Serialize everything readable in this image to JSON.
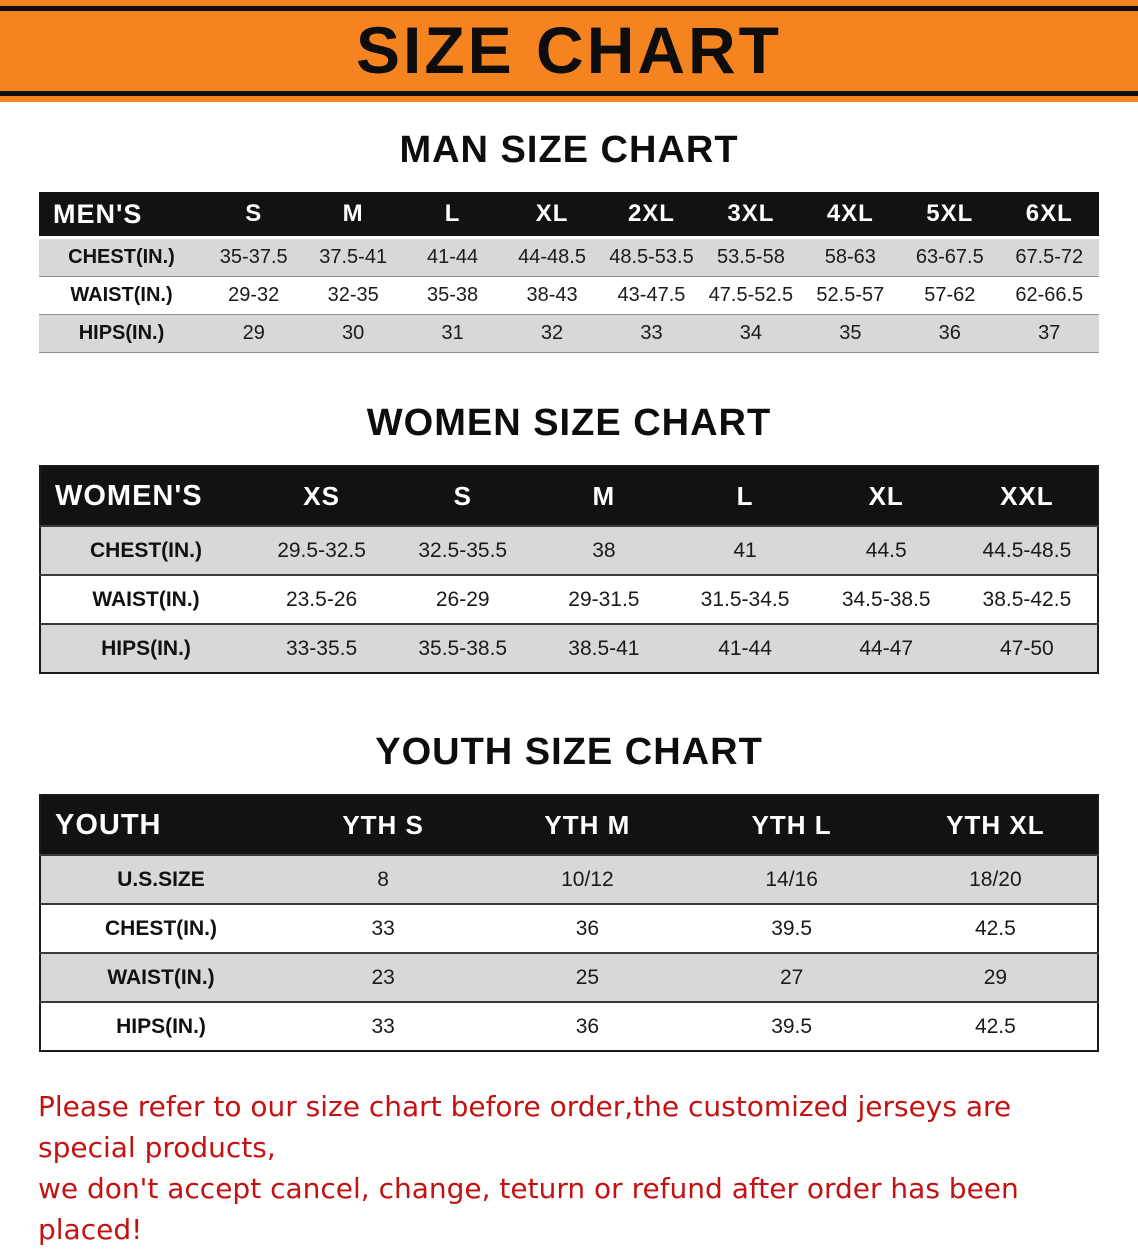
{
  "banner": {
    "title": "SIZE CHART",
    "bg_color": "#f5831f",
    "line_color": "#0d0d0d"
  },
  "sections": [
    {
      "heading": "MAN SIZE CHART",
      "table": {
        "corner_label": "MEN'S",
        "columns": [
          "S",
          "M",
          "L",
          "XL",
          "2XL",
          "3XL",
          "4XL",
          "5XL",
          "6XL"
        ],
        "rows": [
          {
            "label": "CHEST(IN.)",
            "values": [
              "35-37.5",
              "37.5-41",
              "41-44",
              "44-48.5",
              "48.5-53.5",
              "53.5-58",
              "58-63",
              "63-67.5",
              "67.5-72"
            ]
          },
          {
            "label": "WAIST(IN.)",
            "values": [
              "29-32",
              "32-35",
              "35-38",
              "38-43",
              "43-47.5",
              "47.5-52.5",
              "52.5-57",
              "57-62",
              "62-66.5"
            ]
          },
          {
            "label": "HIPS(IN.)",
            "values": [
              "29",
              "30",
              "31",
              "32",
              "33",
              "34",
              "35",
              "36",
              "37"
            ]
          }
        ]
      }
    },
    {
      "heading": "WOMEN SIZE CHART",
      "table": {
        "corner_label": "WOMEN'S",
        "columns": [
          "XS",
          "S",
          "M",
          "L",
          "XL",
          "XXL"
        ],
        "rows": [
          {
            "label": "CHEST(IN.)",
            "values": [
              "29.5-32.5",
              "32.5-35.5",
              "38",
              "41",
              "44.5",
              "44.5-48.5"
            ]
          },
          {
            "label": "WAIST(IN.)",
            "values": [
              "23.5-26",
              "26-29",
              "29-31.5",
              "31.5-34.5",
              "34.5-38.5",
              "38.5-42.5"
            ]
          },
          {
            "label": "HIPS(IN.)",
            "values": [
              "33-35.5",
              "35.5-38.5",
              "38.5-41",
              "41-44",
              "44-47",
              "47-50"
            ]
          }
        ]
      }
    },
    {
      "heading": "YOUTH SIZE CHART",
      "table": {
        "corner_label": "YOUTH",
        "columns": [
          "YTH S",
          "YTH M",
          "YTH L",
          "YTH XL"
        ],
        "rows": [
          {
            "label": "U.S.SIZE",
            "values": [
              "8",
              "10/12",
              "14/16",
              "18/20"
            ]
          },
          {
            "label": "CHEST(IN.)",
            "values": [
              "33",
              "36",
              "39.5",
              "42.5"
            ]
          },
          {
            "label": "WAIST(IN.)",
            "values": [
              "23",
              "25",
              "27",
              "29"
            ]
          },
          {
            "label": "HIPS(IN.)",
            "values": [
              "33",
              "36",
              "39.5",
              "42.5"
            ]
          }
        ]
      }
    }
  ],
  "footer": {
    "line1": "Please refer to our size chart before order,the customized jerseys are special products,",
    "line2": "we don't accept cancel, change, teturn or refund after order has been placed!",
    "text_color": "#c41212"
  }
}
